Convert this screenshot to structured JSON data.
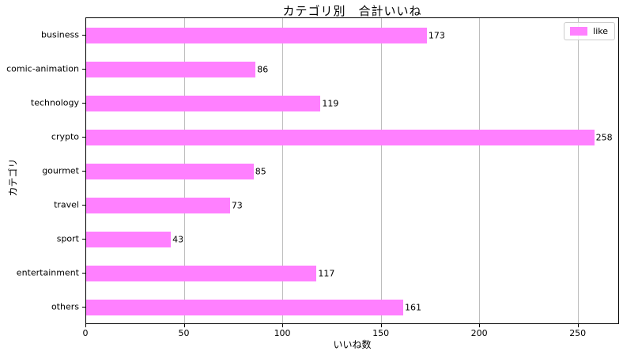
{
  "chart_data": {
    "type": "bar",
    "orientation": "horizontal",
    "title": "カテゴリ別　合計いいね",
    "xlabel": "いいね数",
    "ylabel": "カテゴリ",
    "categories": [
      "business",
      "comic-animation",
      "technology",
      "crypto",
      "gourmet",
      "travel",
      "sport",
      "entertainment",
      "others"
    ],
    "series": [
      {
        "name": "like",
        "values": [
          173,
          86,
          119,
          258,
          85,
          73,
          43,
          117,
          161
        ]
      }
    ],
    "xlim": [
      0,
      271
    ],
    "xticks": [
      0,
      50,
      100,
      150,
      200,
      250
    ],
    "grid": "vertical",
    "legend": {
      "position": "upper-right",
      "entries": [
        "like"
      ]
    },
    "colors": {
      "bar": "#ff80ff",
      "grid": "#bdbdbd",
      "spine": "#000000",
      "text": "#000000",
      "legend_border": "#cccccc"
    }
  }
}
